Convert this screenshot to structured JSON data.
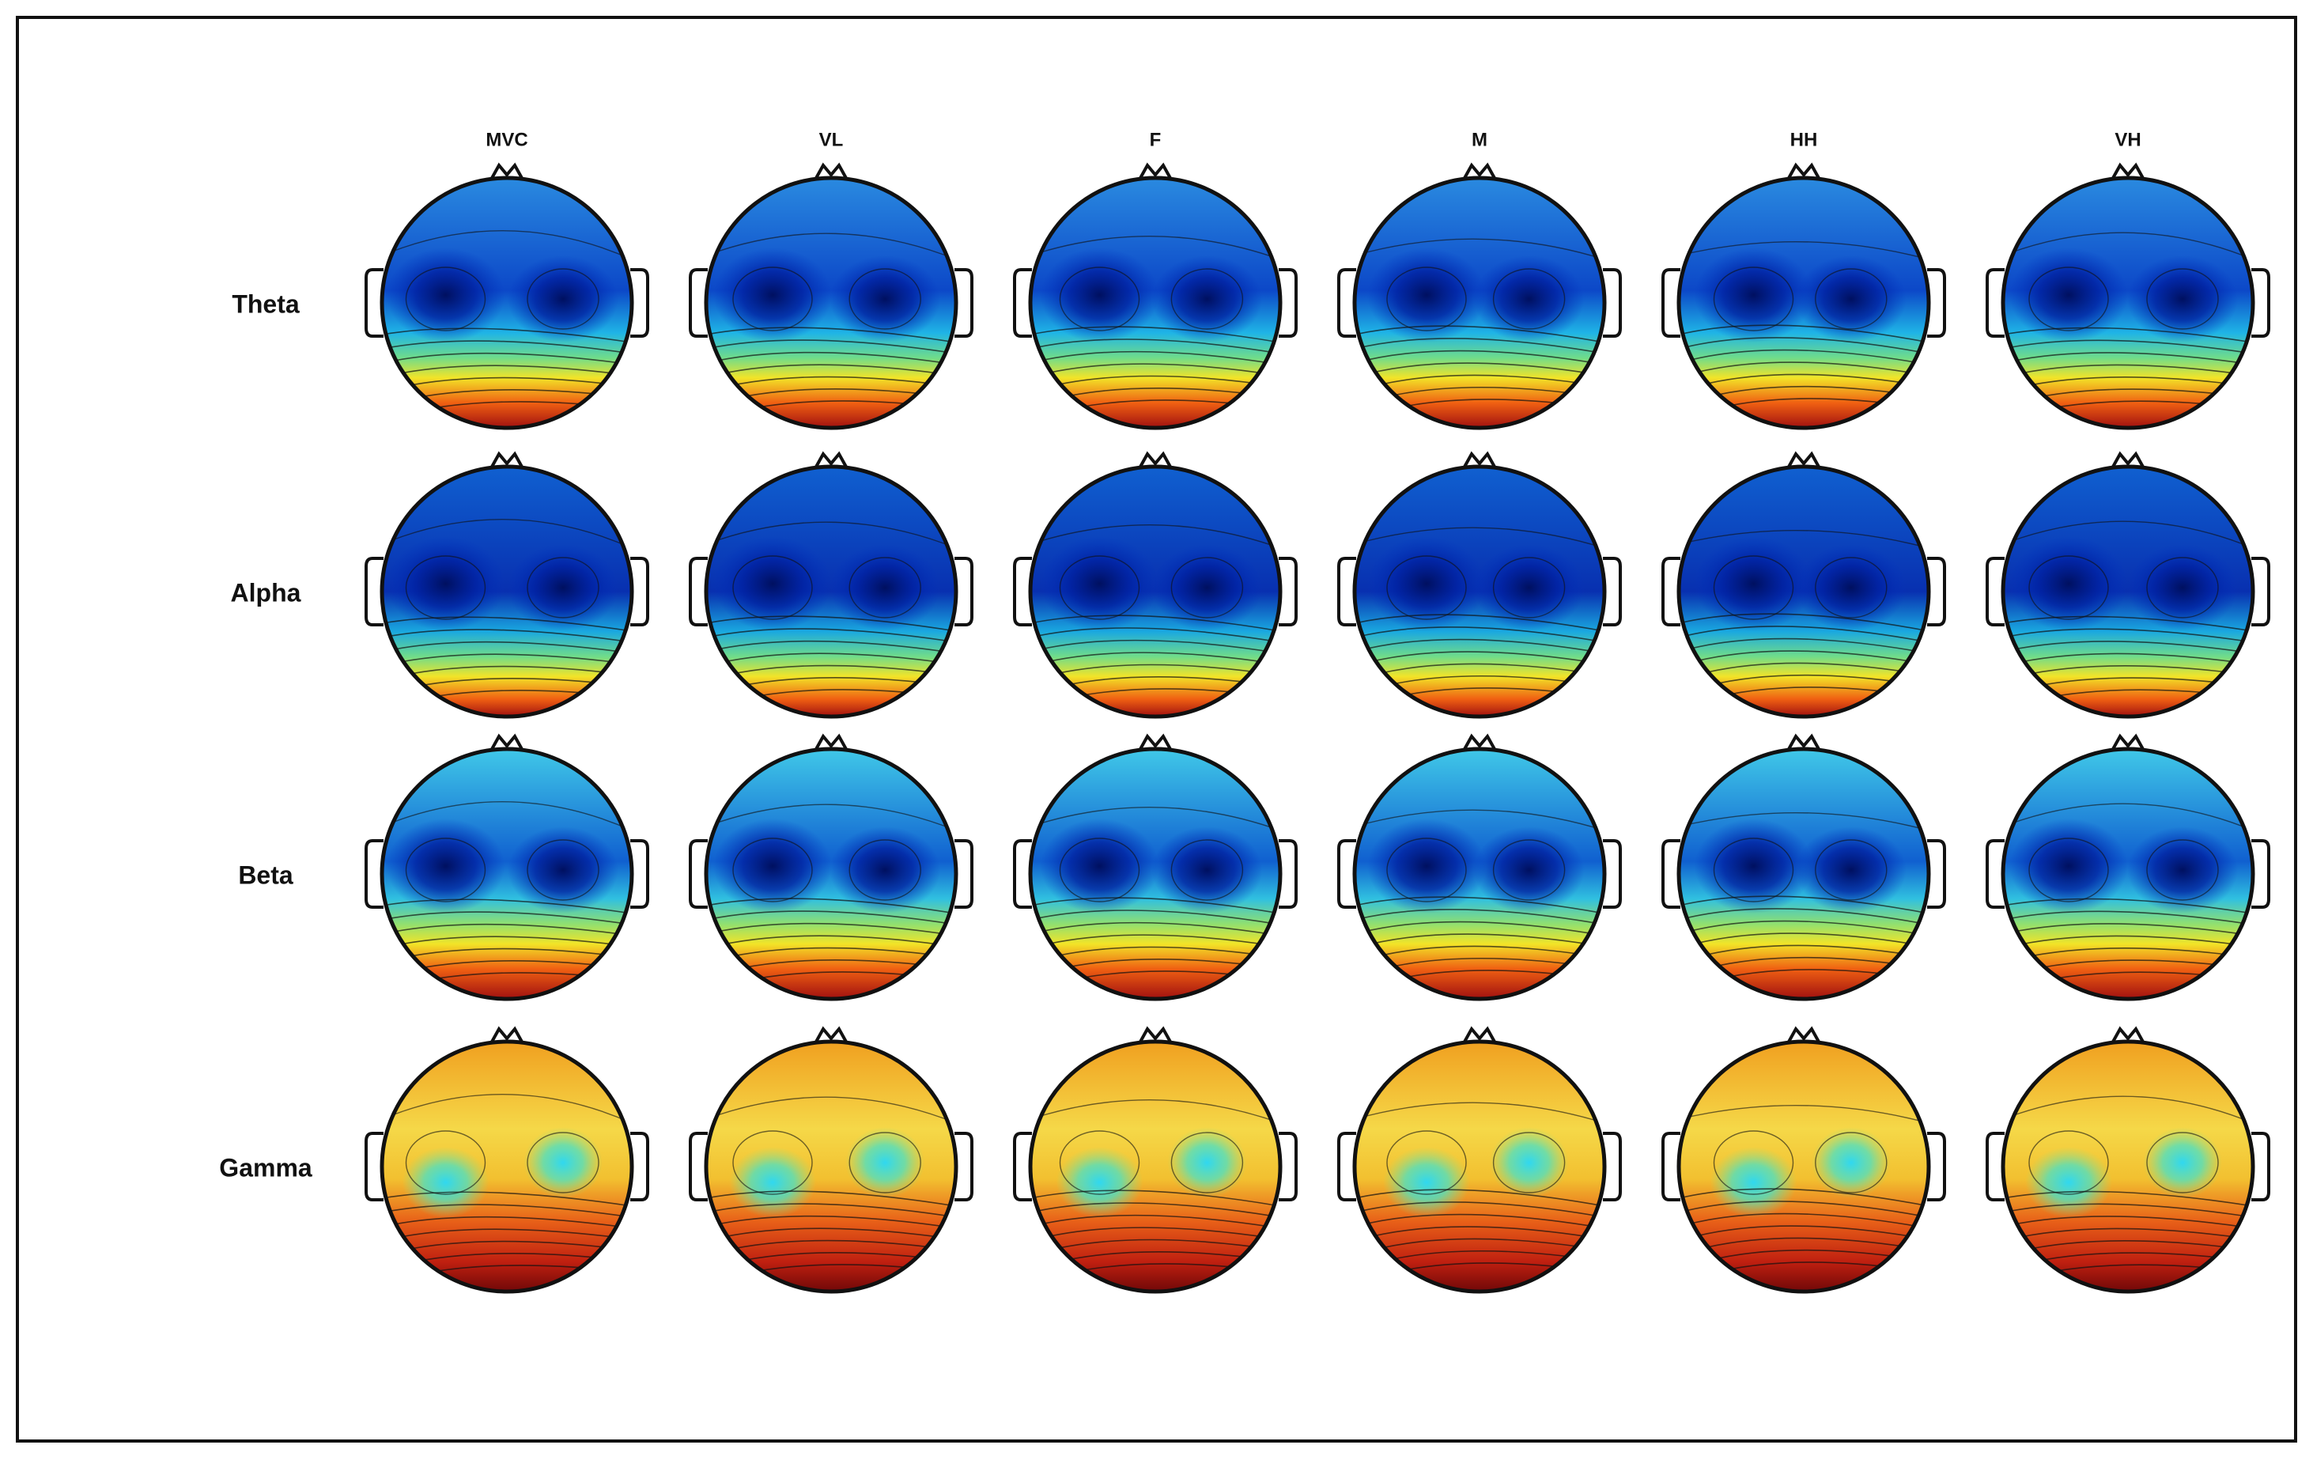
{
  "columns": [
    "MVC",
    "VL",
    "F",
    "M",
    "HH",
    "VH"
  ],
  "rows": [
    "Theta",
    "Alpha",
    "Beta",
    "Gamma"
  ]
}
